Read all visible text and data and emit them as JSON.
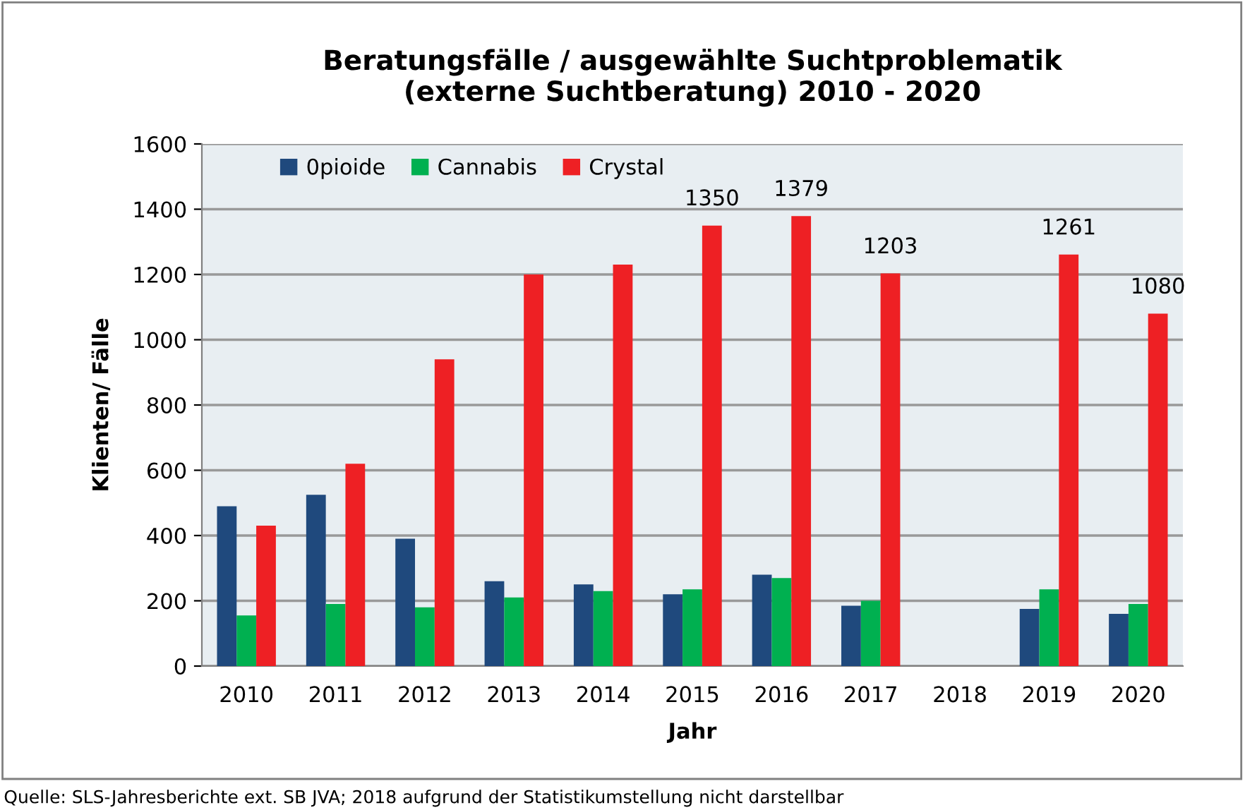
{
  "chart_data": {
    "type": "bar",
    "title": "Beratungsfälle / ausgewählte Suchtproblematik\n(externe Suchtberatung) 2010 - 2020",
    "xlabel": "Jahr",
    "ylabel": "Klienten/ Fälle",
    "categories": [
      "2010",
      "2011",
      "2012",
      "2013",
      "2014",
      "2015",
      "2016",
      "2017",
      "2018",
      "2019",
      "2020"
    ],
    "series": [
      {
        "name": "0pioide",
        "color": "#1f497d",
        "values": [
          490,
          525,
          390,
          260,
          250,
          220,
          280,
          185,
          null,
          175,
          160
        ]
      },
      {
        "name": "Cannabis",
        "color": "#00b050",
        "values": [
          155,
          190,
          180,
          210,
          230,
          235,
          270,
          200,
          null,
          235,
          190
        ]
      },
      {
        "name": "Crystal",
        "color": "#ee2024",
        "values": [
          430,
          620,
          940,
          1200,
          1230,
          1350,
          1379,
          1203,
          null,
          1261,
          1080
        ],
        "value_labels": [
          null,
          null,
          null,
          null,
          null,
          "1350",
          "1379",
          "1203",
          null,
          "1261",
          "1080"
        ]
      }
    ],
    "ylim": [
      0,
      1600
    ],
    "yticks": [
      0,
      200,
      400,
      600,
      800,
      1000,
      1200,
      1400,
      1600
    ],
    "grid": "y",
    "legend": "top left",
    "annotations": [
      "Quelle: SLS-Jahresberichte ext. SB JVA; 2018 aufgrund der Statistikumstellung nicht darstellbar"
    ]
  }
}
